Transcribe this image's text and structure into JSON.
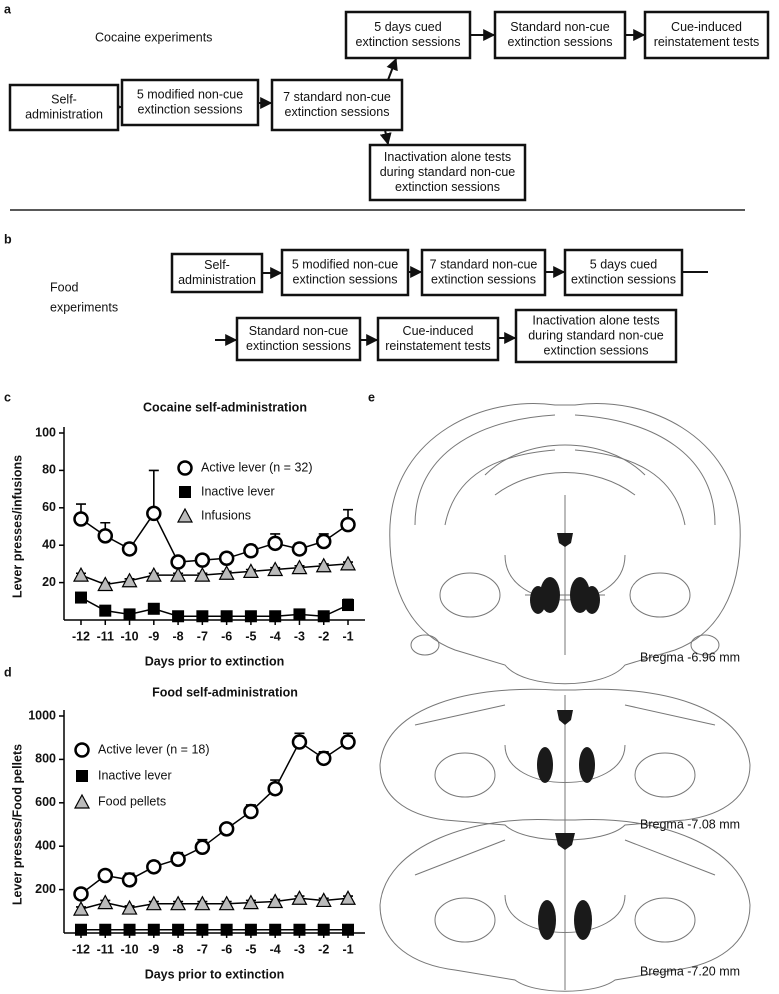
{
  "panel_a": {
    "label": "a",
    "title": "Cocaine experiments",
    "boxes": [
      [
        "Self-",
        "administration"
      ],
      [
        "5 modified non-cue",
        "extinction sessions"
      ],
      [
        "7 standard non-cue",
        "extinction sessions"
      ],
      [
        "5 days cued",
        "extinction sessions"
      ],
      [
        "Standard non-cue",
        "extinction sessions"
      ],
      [
        "Cue-induced",
        "reinstatement tests"
      ],
      [
        "Inactivation alone tests",
        "during standard non-cue",
        "extinction sessions"
      ]
    ]
  },
  "panel_b": {
    "label": "b",
    "title": [
      "Food",
      "experiments"
    ],
    "boxes": [
      [
        "Self-",
        "administration"
      ],
      [
        "5 modified non-cue",
        "extinction sessions"
      ],
      [
        "7 standard non-cue",
        "extinction sessions"
      ],
      [
        "5 days cued",
        "extinction sessions"
      ],
      [
        "Standard non-cue",
        "extinction sessions"
      ],
      [
        "Cue-induced",
        "reinstatement tests"
      ],
      [
        "Inactivation alone tests",
        "during standard non-cue",
        "extinction sessions"
      ]
    ]
  },
  "chart_data": [
    {
      "panel_label": "c",
      "type": "line",
      "title": "Cocaine self-administration",
      "x_label": "Days prior to extinction",
      "y_label": "Lever presses/infusions",
      "x": [
        -12,
        -11,
        -10,
        -9,
        -8,
        -7,
        -6,
        -5,
        -4,
        -3,
        -2,
        -1
      ],
      "xlim": [
        -12.7,
        -0.3
      ],
      "xticks": [
        -12,
        -11,
        -10,
        -9,
        -8,
        -7,
        -6,
        -5,
        -4,
        -3,
        -2,
        -1
      ],
      "ylim": [
        0,
        100
      ],
      "yticks": [
        20,
        40,
        60,
        80,
        100
      ],
      "series": [
        {
          "name": "Active lever (n = 32)",
          "color": "#000000",
          "marker": "circle-open",
          "values": [
            54,
            45,
            38,
            57,
            31,
            32,
            33,
            37,
            41,
            38,
            42,
            51
          ],
          "errors": [
            8,
            7,
            3,
            23,
            2,
            2,
            3,
            3,
            5,
            3,
            4,
            8
          ]
        },
        {
          "name": "Inactive lever",
          "color": "#000000",
          "marker": "square",
          "values": [
            12,
            5,
            3,
            6,
            2,
            2,
            2,
            2,
            2,
            3,
            2,
            8
          ],
          "errors": [
            1,
            1,
            1,
            1,
            1,
            1,
            1,
            1,
            1,
            1,
            1,
            3
          ]
        },
        {
          "name": "Infusions",
          "color": "#000000",
          "marker": "triangle",
          "values": [
            24,
            19,
            21,
            24,
            24,
            24,
            25,
            26,
            27,
            28,
            29,
            30
          ],
          "errors": [
            1,
            1,
            1,
            1,
            1,
            1,
            1,
            1,
            1,
            1,
            1,
            1
          ]
        }
      ]
    },
    {
      "panel_label": "d",
      "type": "line",
      "title": "Food self-administration",
      "x_label": "Days prior to extinction",
      "y_label": "Lever presses/Food pellets",
      "x": [
        -12,
        -11,
        -10,
        -9,
        -8,
        -7,
        -6,
        -5,
        -4,
        -3,
        -2,
        -1
      ],
      "xlim": [
        -12.7,
        -0.3
      ],
      "xticks": [
        -12,
        -11,
        -10,
        -9,
        -8,
        -7,
        -6,
        -5,
        -4,
        -3,
        -2,
        -1
      ],
      "ylim": [
        0,
        1000
      ],
      "yticks": [
        200,
        400,
        600,
        800,
        1000
      ],
      "series": [
        {
          "name": "Active lever (n = 18)",
          "color": "#000000",
          "marker": "circle-open",
          "values": [
            180,
            265,
            245,
            305,
            340,
            395,
            480,
            560,
            665,
            880,
            805,
            880
          ],
          "errors": [
            20,
            15,
            30,
            25,
            30,
            35,
            20,
            30,
            40,
            40,
            30,
            40
          ]
        },
        {
          "name": "Inactive lever",
          "color": "#000000",
          "marker": "square",
          "values": [
            15,
            15,
            15,
            15,
            15,
            15,
            15,
            15,
            15,
            15,
            15,
            15
          ],
          "errors": [
            3,
            3,
            3,
            3,
            3,
            3,
            3,
            3,
            3,
            3,
            3,
            3
          ]
        },
        {
          "name": "Food pellets",
          "color": "#000000",
          "marker": "triangle",
          "values": [
            110,
            140,
            115,
            135,
            135,
            135,
            135,
            140,
            145,
            160,
            150,
            160
          ],
          "errors": [
            10,
            10,
            10,
            10,
            10,
            10,
            10,
            10,
            10,
            10,
            10,
            10
          ]
        }
      ]
    }
  ],
  "panel_e": {
    "label": "e",
    "sections": [
      "Bregma -6.96 mm",
      "Bregma -7.08 mm",
      "Bregma -7.20 mm"
    ]
  }
}
